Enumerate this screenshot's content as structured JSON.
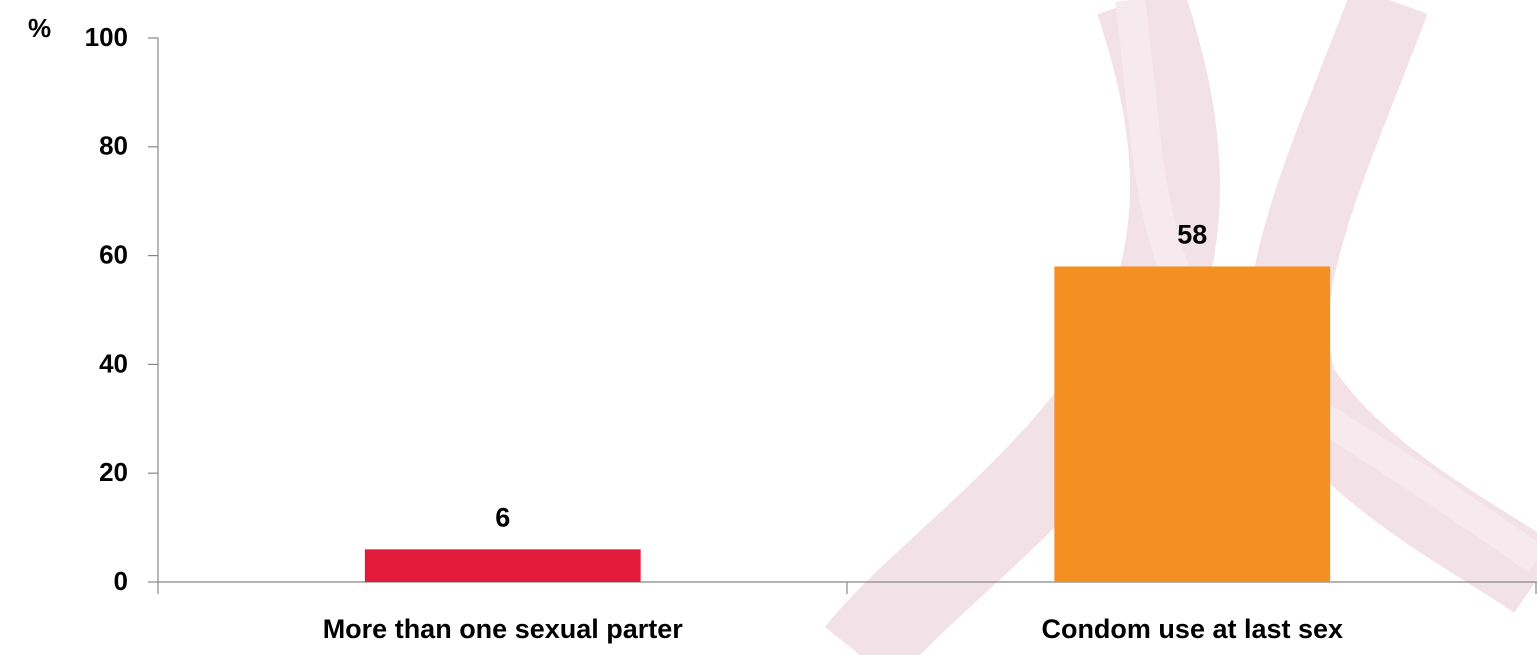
{
  "chart_data": {
    "type": "bar",
    "y_label": "%",
    "categories": [
      "More than one sexual parter",
      "Condom use at last sex"
    ],
    "values": [
      6,
      58
    ],
    "colors": [
      "#e31b3b",
      "#f39021"
    ],
    "ylim": [
      0,
      100
    ],
    "yticks": [
      0,
      20,
      40,
      60,
      80,
      100
    ],
    "grid": false
  }
}
